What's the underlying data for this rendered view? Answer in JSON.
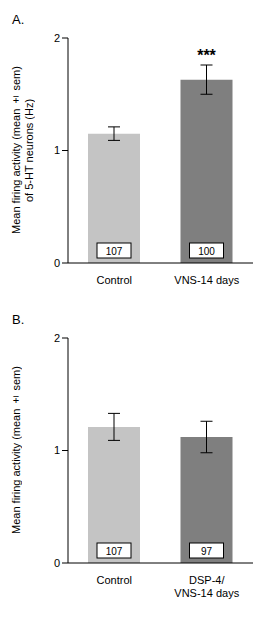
{
  "chart_data": [
    {
      "type": "bar",
      "title": "A.",
      "y_label": "Mean firing activity (mean ± sem) of 5-HT neurons (Hz)",
      "categories": [
        "Control",
        "VNS-14 days"
      ],
      "values": [
        1.15,
        1.63
      ],
      "errors": [
        0.06,
        0.13
      ],
      "n": [
        107,
        100
      ],
      "colors": [
        "#c4c4c4",
        "#7f7f7f"
      ],
      "ylim": [
        0,
        2
      ],
      "yticks": [
        0,
        1,
        2
      ],
      "annotations": [
        {
          "text": "***",
          "category": "VNS-14 days"
        }
      ]
    },
    {
      "type": "bar",
      "title": "B.",
      "y_label": "Mean firing activity (mean ± sem)",
      "categories": [
        "Control",
        "DSP-4/ VNS-14 days"
      ],
      "values": [
        1.21,
        1.12
      ],
      "errors": [
        0.12,
        0.14
      ],
      "n": [
        107,
        97
      ],
      "colors": [
        "#c4c4c4",
        "#7f7f7f"
      ],
      "ylim": [
        0,
        2
      ],
      "yticks": [
        0,
        1,
        2
      ]
    }
  ]
}
